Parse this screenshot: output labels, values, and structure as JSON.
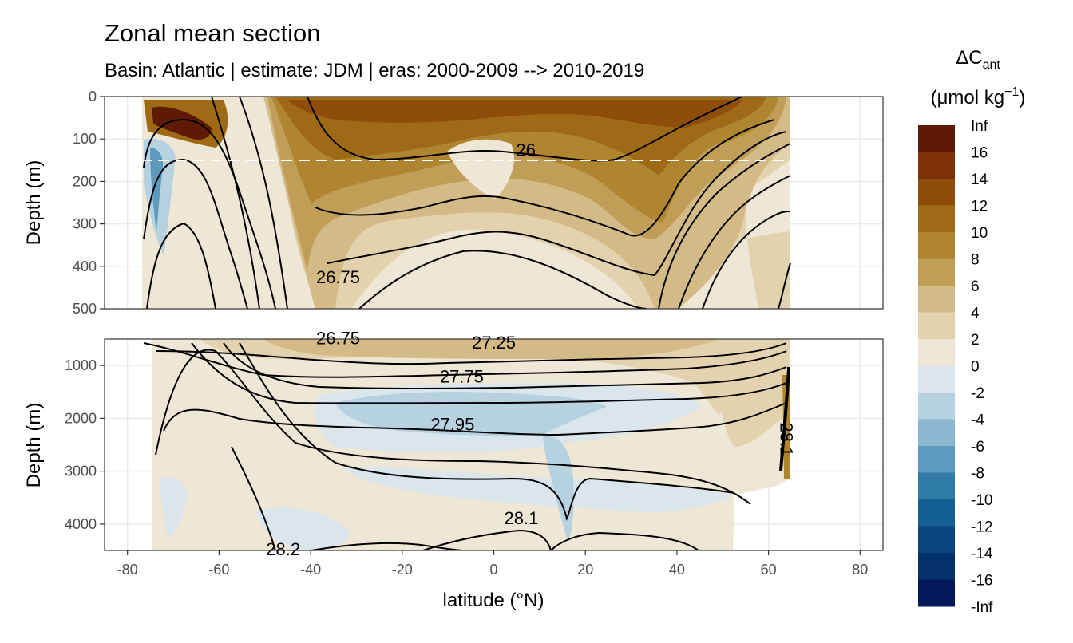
{
  "title": "Zonal mean section",
  "subtitle": "Basin: Atlantic | estimate: JDM  | eras: 2000-2009 --> 2010-2019",
  "chart_data": {
    "type": "heatmap",
    "title": "Zonal mean section",
    "subtitle": "Basin: Atlantic | estimate: JDM  | eras: 2000-2009 --> 2010-2019",
    "xlabel": "latitude (°N)",
    "ylabel": "Depth (m)",
    "xlim": [
      -85,
      85
    ],
    "x_ticks": [
      "-80",
      "-60",
      "-40",
      "-20",
      "0",
      "20",
      "40",
      "60",
      "80"
    ],
    "panels": [
      {
        "name": "upper",
        "ylim": [
          0,
          500
        ],
        "y_ticks": [
          "0",
          "100",
          "200",
          "300",
          "400",
          "500"
        ]
      },
      {
        "name": "lower",
        "ylim": [
          500,
          4500
        ],
        "y_ticks": [
          "1000",
          "2000",
          "3000",
          "4000"
        ]
      }
    ],
    "reference_line_depth": 150,
    "legend": {
      "title": "ΔC",
      "title_subscript": "ant",
      "unit": "(μmol kg",
      "unit_superscript": "−1",
      "unit_close": ")",
      "labels": [
        "Inf",
        "16",
        "14",
        "12",
        "10",
        "8",
        "6",
        "4",
        "2",
        "0",
        "-2",
        "-4",
        "-6",
        "-8",
        "-10",
        "-12",
        "-14",
        "-16",
        "-Inf"
      ],
      "colors": [
        "#5e1a05",
        "#7d3108",
        "#8f4d0b",
        "#9e6a15",
        "#af852f",
        "#c19e58",
        "#d3ba86",
        "#e2d2ad",
        "#eee7d6",
        "#dbe6ec",
        "#b6d1e0",
        "#8bb7d1",
        "#5d9abe",
        "#317ba9",
        "#155f94",
        "#0a4780",
        "#05316b",
        "#02195a"
      ]
    },
    "isopycnal_labels": [
      {
        "text": "26",
        "panel": "upper",
        "lat": 7,
        "depth": 125
      },
      {
        "text": "26.75",
        "panel": "upper",
        "lat": -34,
        "depth": 425
      },
      {
        "text": "26.75",
        "panel": "lower",
        "lat": -34,
        "depth": 480
      },
      {
        "text": "27.25",
        "panel": "lower",
        "lat": 0,
        "depth": 560
      },
      {
        "text": "27.75",
        "panel": "lower",
        "lat": -7,
        "depth": 1200
      },
      {
        "text": "27.95",
        "panel": "lower",
        "lat": -9,
        "depth": 2110
      },
      {
        "text": "28.1",
        "panel": "lower",
        "lat": 6,
        "depth": 3880
      },
      {
        "text": "28.2",
        "panel": "lower",
        "lat": -46,
        "depth": 4470
      },
      {
        "text": "28.1",
        "panel": "lower",
        "lat": 64,
        "depth": 2400
      }
    ]
  }
}
